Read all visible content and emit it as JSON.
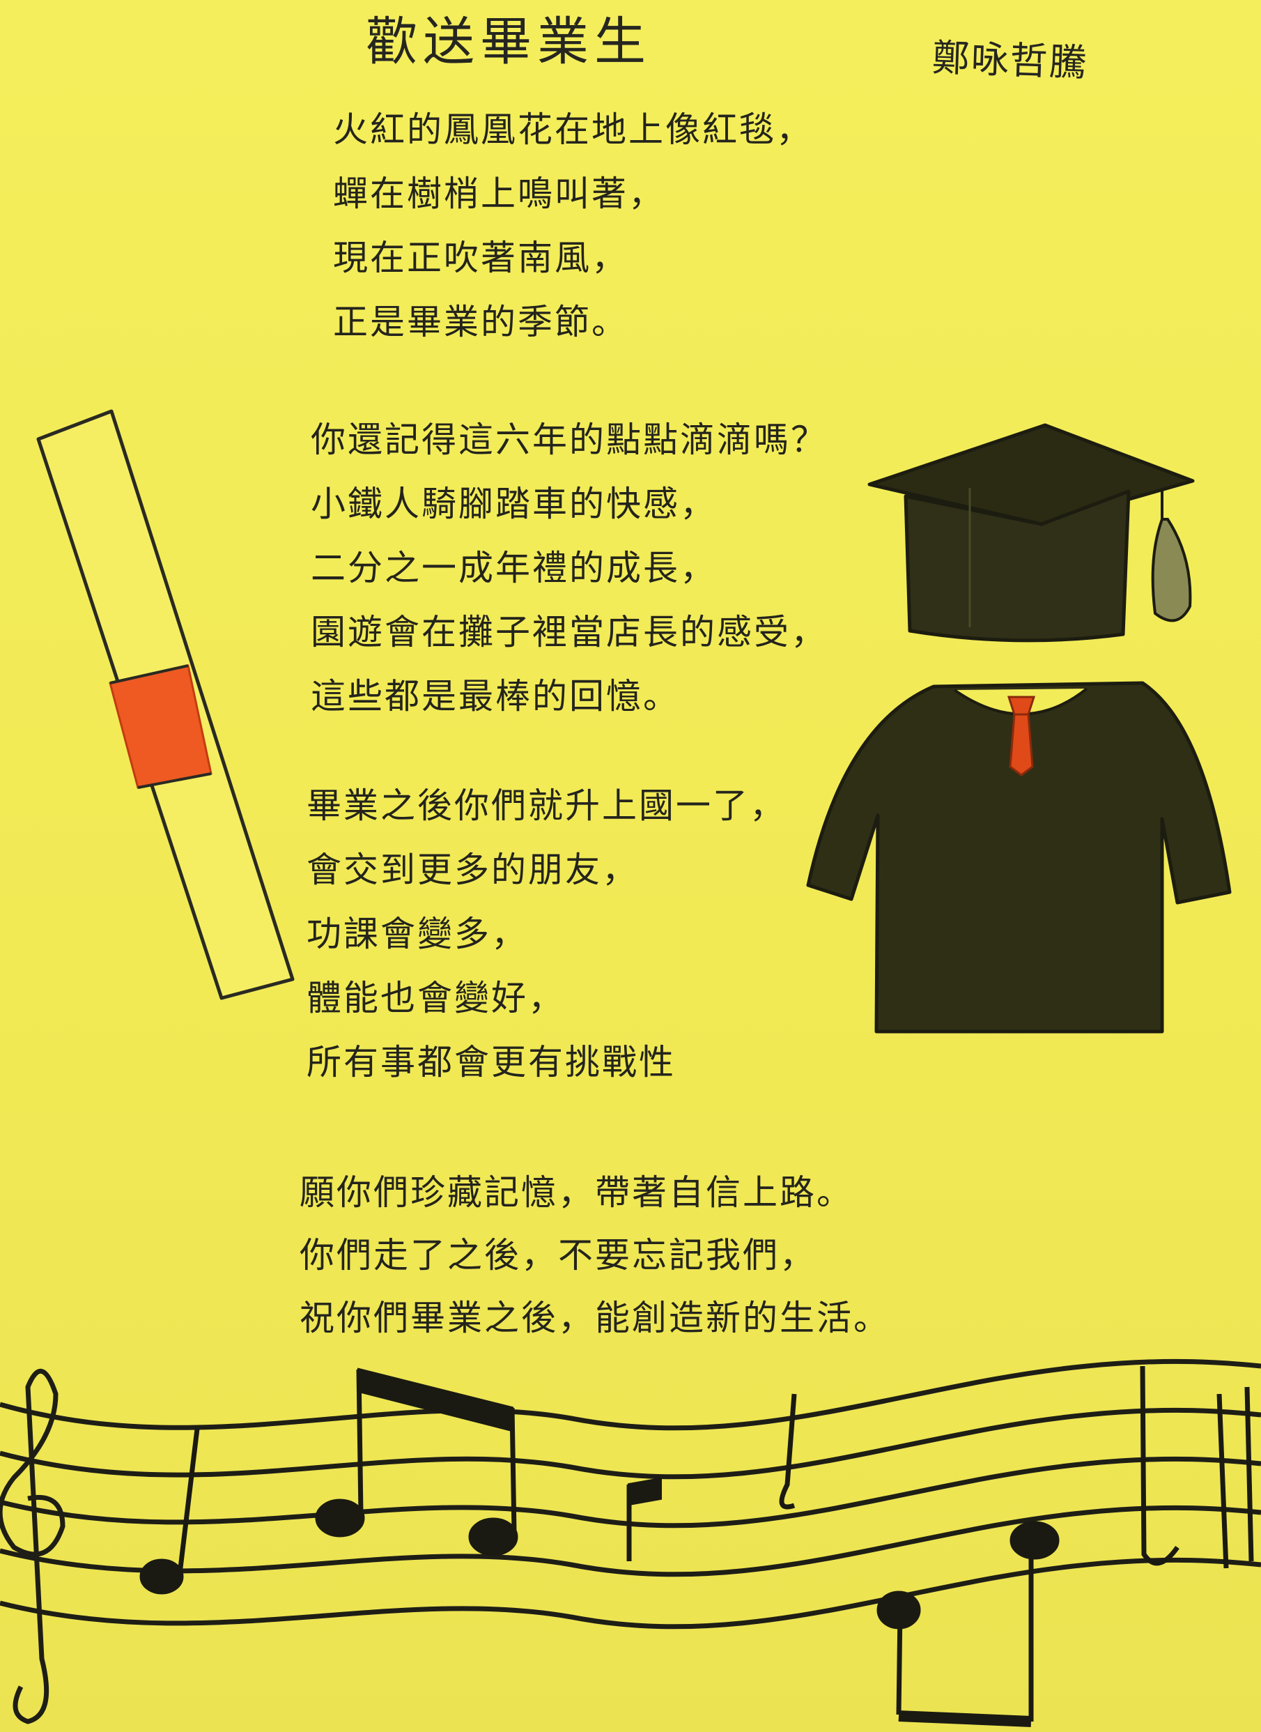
{
  "poem": {
    "title": "歡送畢業生",
    "author": "鄭咏哲騰",
    "stanzas": [
      {
        "lines": [
          "火紅的鳳凰花在地上像紅毯，",
          "蟬在樹梢上鳴叫著，",
          "現在正吹著南風，",
          "正是畢業的季節。"
        ]
      },
      {
        "lines": [
          "你還記得這六年的點點滴滴嗎？",
          "小鐵人騎腳踏車的快感，",
          "二分之一成年禮的成長，",
          "園遊會在攤子裡當店長的感受，",
          "這些都是最棒的回憶。"
        ]
      },
      {
        "lines": [
          "畢業之後你們就升上國一了，",
          "會交到更多的朋友，",
          "功課會變多，",
          "體能也會變好，",
          "所有事都會更有挑戰性"
        ]
      },
      {
        "lines": [
          "願你們珍藏記憶，帶著自信上路。",
          "你們走了之後，不要忘記我們，",
          "祝你們畢業之後，能創造新的生活。"
        ]
      }
    ]
  },
  "colors": {
    "paper": "#f2ec58",
    "ink": "#1e1e18",
    "gown": "#2a2a14",
    "tie": "#e04a18",
    "diploma_band": "#ee5a22"
  }
}
